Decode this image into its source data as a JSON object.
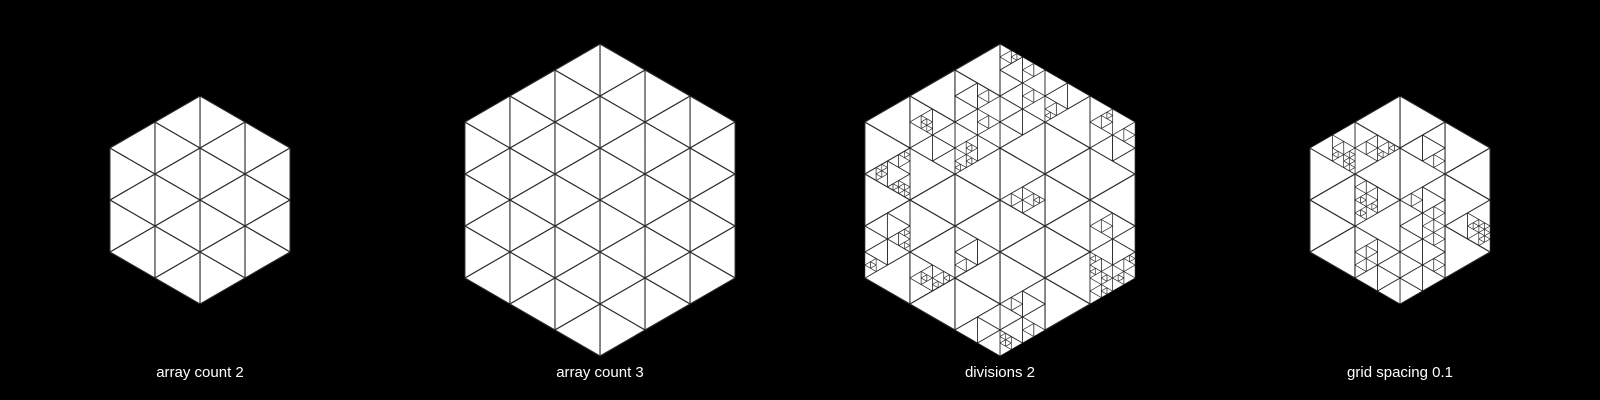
{
  "figure": {
    "background": "#000000",
    "fill_color": "#ffffff",
    "line_color": "#2a2a2a"
  },
  "panels": [
    {
      "id": "array-count-2",
      "label": "array count 2",
      "grid_divisions": 4,
      "extra_subdivision": "none"
    },
    {
      "id": "array-count-3",
      "label": "array count 3",
      "grid_divisions": 6,
      "extra_subdivision": "none"
    },
    {
      "id": "divisions-2",
      "label": "divisions 2",
      "grid_divisions": 6,
      "extra_subdivision": "random-recursive"
    },
    {
      "id": "grid-spacing-0-1",
      "label": "grid spacing 0.1",
      "grid_divisions": 4,
      "extra_subdivision": "random-recursive"
    }
  ]
}
